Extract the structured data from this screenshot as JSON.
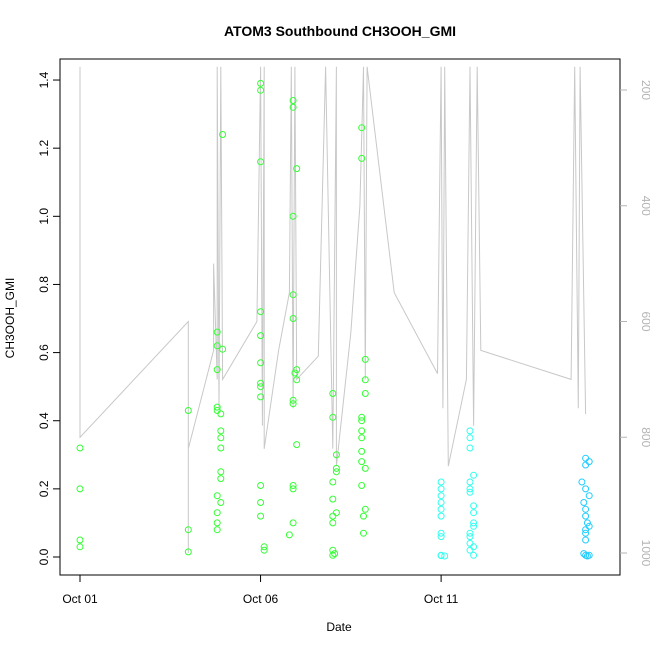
{
  "chart_data": {
    "type": "scatter",
    "title": "ATOM3 Southbound CH3OOH_GMI",
    "xlabel": "Date",
    "ylabel": "CH3OOH_GMI",
    "x_range_days": [
      0,
      14.4
    ],
    "x_ticks": [
      {
        "day": 0,
        "label": "Oct 01"
      },
      {
        "day": 5,
        "label": "Oct 06"
      },
      {
        "day": 10,
        "label": "Oct 11"
      }
    ],
    "y_range": [
      0,
      1.45
    ],
    "y_ticks": [
      0.0,
      0.2,
      0.4,
      0.6,
      0.8,
      1.0,
      1.2,
      1.4
    ],
    "y_tick_labels": [
      "0.0",
      "0.2",
      "0.4",
      "0.6",
      "0.8",
      "1.0",
      "1.2",
      "1.4"
    ],
    "secondary_axis": {
      "label": "",
      "note": "pressure (hPa), reversed, drawn as grey flight-altitude trace",
      "range": [
        1035,
        160
      ],
      "ticks": [
        200,
        400,
        600,
        800,
        1000
      ],
      "tick_labels": [
        "200",
        "400",
        "600",
        "800",
        "1000"
      ],
      "color": "#b4b4b4"
    },
    "grid": false,
    "legend": "none",
    "point_style": "open circle, colored green to cyan to blue by date",
    "series": [
      {
        "values": [
          [
            0.0,
            0.32
          ],
          [
            0.0,
            0.2
          ],
          [
            0.0,
            0.05
          ],
          [
            0.0,
            0.03
          ],
          [
            3.0,
            0.43
          ],
          [
            3.0,
            0.08
          ],
          [
            3.0,
            0.015
          ],
          [
            3.8,
            0.66
          ],
          [
            3.8,
            0.62
          ],
          [
            3.8,
            0.55
          ],
          [
            3.8,
            0.44
          ],
          [
            3.8,
            0.43
          ],
          [
            3.9,
            0.42
          ],
          [
            3.9,
            0.37
          ],
          [
            3.9,
            0.35
          ],
          [
            3.9,
            0.32
          ],
          [
            3.9,
            0.25
          ],
          [
            3.9,
            0.23
          ],
          [
            3.8,
            0.18
          ],
          [
            3.9,
            0.16
          ],
          [
            3.8,
            0.13
          ],
          [
            3.8,
            0.1
          ],
          [
            3.8,
            0.08
          ],
          [
            3.95,
            0.61
          ],
          [
            3.95,
            1.24
          ],
          [
            5.0,
            1.39
          ],
          [
            5.0,
            1.37
          ],
          [
            5.0,
            1.16
          ],
          [
            5.0,
            0.72
          ],
          [
            5.0,
            0.65
          ],
          [
            5.0,
            0.57
          ],
          [
            5.0,
            0.51
          ],
          [
            5.0,
            0.5
          ],
          [
            5.0,
            0.47
          ],
          [
            5.0,
            0.21
          ],
          [
            5.0,
            0.16
          ],
          [
            5.0,
            0.12
          ],
          [
            5.1,
            0.03
          ],
          [
            5.1,
            0.02
          ],
          [
            5.9,
            1.34
          ],
          [
            5.9,
            1.32
          ],
          [
            6.0,
            1.14
          ],
          [
            5.9,
            1.0
          ],
          [
            5.9,
            0.77
          ],
          [
            5.9,
            0.7
          ],
          [
            6.0,
            0.55
          ],
          [
            5.95,
            0.54
          ],
          [
            6.0,
            0.52
          ],
          [
            5.9,
            0.46
          ],
          [
            5.9,
            0.45
          ],
          [
            6.0,
            0.33
          ],
          [
            5.9,
            0.21
          ],
          [
            5.9,
            0.2
          ],
          [
            5.9,
            0.1
          ],
          [
            5.8,
            0.065
          ],
          [
            7.0,
            0.48
          ],
          [
            7.0,
            0.41
          ],
          [
            7.1,
            0.3
          ],
          [
            7.1,
            0.26
          ],
          [
            7.1,
            0.25
          ],
          [
            7.0,
            0.22
          ],
          [
            7.0,
            0.17
          ],
          [
            7.1,
            0.13
          ],
          [
            7.0,
            0.12
          ],
          [
            7.0,
            0.1
          ],
          [
            7.0,
            0.02
          ],
          [
            7.05,
            0.01
          ],
          [
            7.0,
            0.005
          ],
          [
            7.8,
            1.26
          ],
          [
            7.8,
            1.17
          ],
          [
            7.9,
            0.58
          ],
          [
            7.9,
            0.52
          ],
          [
            7.9,
            0.48
          ],
          [
            7.8,
            0.41
          ],
          [
            7.8,
            0.4
          ],
          [
            7.8,
            0.37
          ],
          [
            7.8,
            0.35
          ],
          [
            7.8,
            0.31
          ],
          [
            7.8,
            0.28
          ],
          [
            7.9,
            0.26
          ],
          [
            7.8,
            0.21
          ],
          [
            7.9,
            0.14
          ],
          [
            7.85,
            0.12
          ],
          [
            7.85,
            0.07
          ]
        ],
        "color": "#33ff33"
      },
      {
        "values": [
          [
            10.0,
            0.22
          ],
          [
            10.0,
            0.2
          ],
          [
            10.0,
            0.18
          ],
          [
            10.0,
            0.16
          ],
          [
            10.0,
            0.14
          ],
          [
            10.0,
            0.12
          ],
          [
            10.0,
            0.07
          ],
          [
            10.0,
            0.06
          ],
          [
            10.0,
            0.005
          ],
          [
            10.0,
            0.004
          ],
          [
            10.1,
            0.003
          ],
          [
            10.8,
            0.37
          ],
          [
            10.8,
            0.35
          ],
          [
            10.8,
            0.32
          ],
          [
            10.9,
            0.24
          ],
          [
            10.8,
            0.22
          ],
          [
            10.8,
            0.2
          ],
          [
            10.8,
            0.19
          ],
          [
            10.9,
            0.15
          ],
          [
            10.9,
            0.13
          ],
          [
            10.9,
            0.1
          ],
          [
            10.9,
            0.09
          ],
          [
            10.8,
            0.07
          ],
          [
            10.8,
            0.06
          ],
          [
            10.8,
            0.04
          ],
          [
            10.9,
            0.03
          ],
          [
            10.8,
            0.02
          ],
          [
            10.9,
            0.005
          ]
        ],
        "color": "#33ffee"
      },
      {
        "values": [
          [
            14.0,
            0.29
          ],
          [
            14.1,
            0.28
          ],
          [
            14.0,
            0.27
          ],
          [
            13.9,
            0.22
          ],
          [
            14.0,
            0.2
          ],
          [
            14.1,
            0.18
          ],
          [
            13.95,
            0.16
          ],
          [
            14.0,
            0.14
          ],
          [
            14.0,
            0.12
          ],
          [
            14.05,
            0.1
          ],
          [
            14.1,
            0.09
          ],
          [
            14.0,
            0.08
          ],
          [
            14.0,
            0.07
          ],
          [
            14.0,
            0.05
          ],
          [
            13.95,
            0.01
          ],
          [
            14.0,
            0.005
          ],
          [
            14.1,
            0.005
          ],
          [
            14.05,
            0.003
          ]
        ],
        "color": "#22ccff"
      }
    ],
    "altitude_trace": {
      "color": "#c8c8c8",
      "points": [
        [
          0.0,
          160
        ],
        [
          0.0,
          800
        ],
        [
          3.0,
          600
        ],
        [
          3.0,
          820
        ],
        [
          3.0,
          1000
        ],
        [
          3.0,
          820
        ],
        [
          3.7,
          650
        ],
        [
          3.7,
          500
        ],
        [
          3.8,
          700
        ],
        [
          3.8,
          160
        ],
        [
          3.85,
          750
        ],
        [
          3.9,
          160
        ],
        [
          3.95,
          700
        ],
        [
          4.9,
          600
        ],
        [
          5.0,
          160
        ],
        [
          5.05,
          780
        ],
        [
          5.1,
          160
        ],
        [
          5.1,
          820
        ],
        [
          5.5,
          650
        ],
        [
          5.8,
          550
        ],
        [
          5.85,
          160
        ],
        [
          5.9,
          750
        ],
        [
          5.95,
          160
        ],
        [
          6.0,
          700
        ],
        [
          6.6,
          660
        ],
        [
          6.8,
          160
        ],
        [
          7.0,
          820
        ],
        [
          7.1,
          160
        ],
        [
          7.1,
          850
        ],
        [
          7.5,
          620
        ],
        [
          7.75,
          400
        ],
        [
          7.85,
          160
        ],
        [
          7.9,
          700
        ],
        [
          7.95,
          160
        ],
        [
          8.7,
          550
        ],
        [
          9.9,
          690
        ],
        [
          10.0,
          160
        ],
        [
          10.05,
          750
        ],
        [
          10.1,
          160
        ],
        [
          10.2,
          850
        ],
        [
          10.7,
          700
        ],
        [
          10.8,
          160
        ],
        [
          10.9,
          780
        ],
        [
          11.0,
          160
        ],
        [
          11.1,
          650
        ],
        [
          13.6,
          700
        ],
        [
          13.7,
          160
        ],
        [
          13.8,
          750
        ],
        [
          13.85,
          160
        ],
        [
          14.0,
          760
        ]
      ]
    }
  }
}
